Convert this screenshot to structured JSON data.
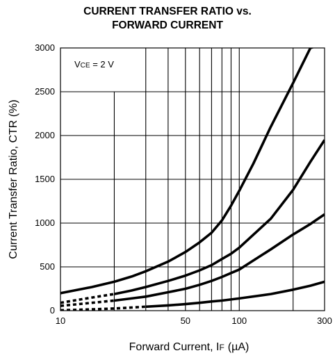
{
  "chart_data": {
    "type": "line",
    "title_line1": "CURRENT TRANSFER RATIO vs.",
    "title_line2": "FORWARD CURRENT",
    "xlabel": "Forward Current, I",
    "xlabel_sub": "F",
    "xlabel_unit": "(µA)",
    "ylabel": "Current Transfer Ratio, CTR (%)",
    "x_scale": "log",
    "xlim": [
      10,
      300
    ],
    "ylim": [
      0,
      3000
    ],
    "x_tick_labels": [
      "10",
      "50",
      "100",
      "300"
    ],
    "x_ticks": [
      10,
      50,
      100,
      300
    ],
    "x_gridlines": [
      20,
      30,
      40,
      50,
      60,
      70,
      80,
      90,
      100,
      200,
      300
    ],
    "y_ticks": [
      0,
      500,
      1000,
      1500,
      2000,
      2500,
      3000
    ],
    "y_tick_labels": [
      "0",
      "500",
      "1000",
      "1500",
      "2000",
      "2500",
      "3000"
    ],
    "annotation": {
      "prefix": "V",
      "sub": "CE",
      "suffix": " = 2 V"
    },
    "series": [
      {
        "x": [
          10,
          15,
          20,
          25,
          30,
          40,
          50,
          60,
          70,
          80,
          90,
          100,
          120,
          150,
          200,
          250,
          300
        ],
        "y": [
          200,
          270,
          330,
          390,
          450,
          560,
          670,
          780,
          890,
          1030,
          1200,
          1370,
          1680,
          2100,
          2600,
          3000,
          3050
        ],
        "dashed_below": 0
      },
      {
        "x": [
          10,
          15,
          20,
          25,
          30,
          40,
          50,
          60,
          70,
          80,
          90,
          100,
          150,
          200,
          250,
          300
        ],
        "y": [
          90,
          150,
          190,
          230,
          270,
          340,
          400,
          460,
          520,
          590,
          650,
          720,
          1050,
          1380,
          1700,
          1950
        ],
        "dashed_below": 20
      },
      {
        "x": [
          10,
          15,
          20,
          25,
          30,
          40,
          50,
          60,
          70,
          80,
          90,
          100,
          150,
          200,
          250,
          300
        ],
        "y": [
          55,
          90,
          115,
          140,
          160,
          210,
          250,
          295,
          340,
          385,
          430,
          470,
          700,
          870,
          990,
          1100
        ],
        "dashed_below": 20
      },
      {
        "x": [
          10,
          15,
          20,
          30,
          40,
          50,
          60,
          70,
          80,
          100,
          150,
          200,
          250,
          300
        ],
        "y": [
          5,
          15,
          25,
          45,
          60,
          75,
          90,
          105,
          115,
          140,
          190,
          240,
          285,
          330
        ],
        "dashed_below": 30
      }
    ]
  }
}
